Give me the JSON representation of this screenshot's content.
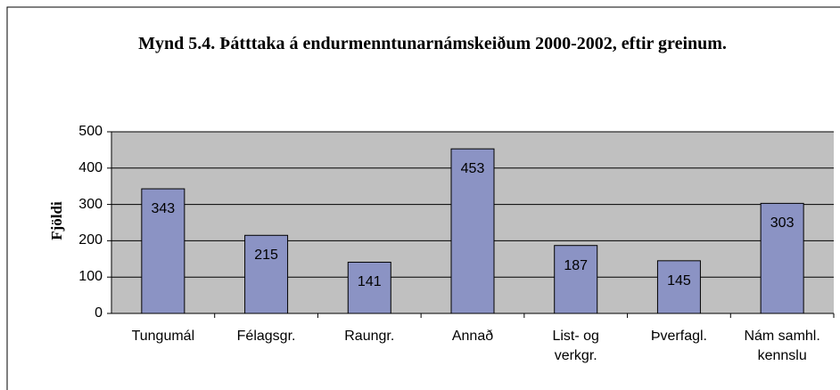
{
  "chart_data": {
    "type": "bar",
    "title": "Mynd 5.4. Þátttaka á endurmenntunarnámskeiðum 2000-2002, eftir greinum.",
    "ylabel": "Fjöldi",
    "categories": [
      "Tungumál",
      "Félagsgr.",
      "Raungr.",
      "Annað",
      "List- og\nverkgr.",
      "Þverfagl.",
      "Nám samhl.\nkennslu"
    ],
    "values": [
      343,
      215,
      141,
      453,
      187,
      145,
      303
    ],
    "color": "#8b93c4",
    "ylim": [
      0,
      500
    ],
    "yticks": [
      0,
      100,
      200,
      300,
      400,
      500
    ],
    "grid": true
  }
}
